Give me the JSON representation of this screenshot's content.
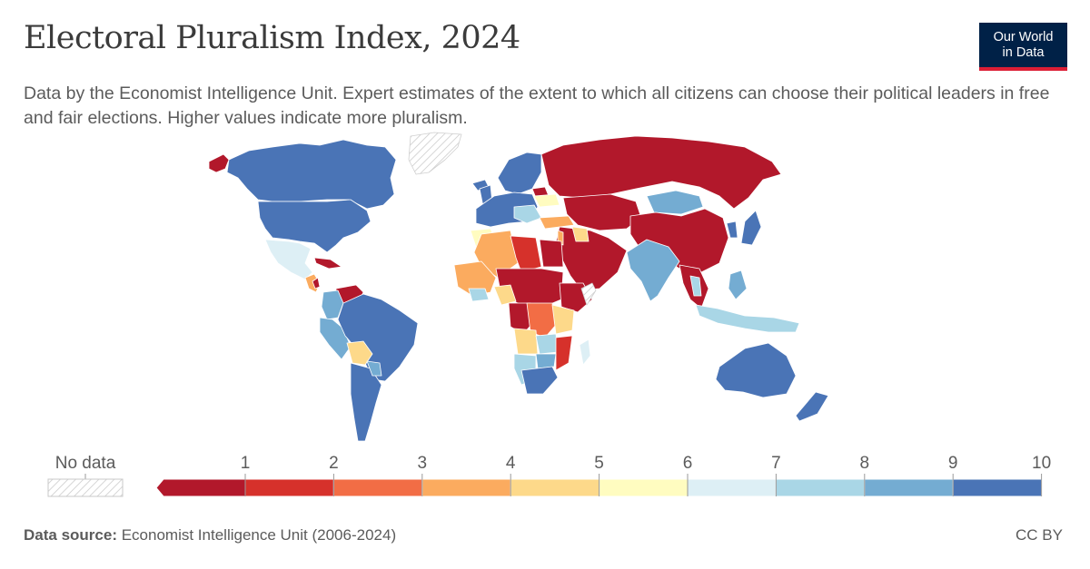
{
  "header": {
    "title": "Electoral Pluralism Index, 2024",
    "subtitle": "Data by the Economist Intelligence Unit. Expert estimates of the extent to which all citizens can choose their political leaders in free and fair elections. Higher values indicate more pluralism.",
    "logo_line1": "Our World",
    "logo_line2": "in Data"
  },
  "legend": {
    "no_data_label": "No data",
    "ticks": [
      "1",
      "2",
      "3",
      "4",
      "5",
      "6",
      "7",
      "8",
      "9",
      "10"
    ],
    "colors": [
      "#b2182b",
      "#d6312b",
      "#f26d45",
      "#fbab5f",
      "#fdd98a",
      "#fffcc0",
      "#ddeff5",
      "#a9d6e6",
      "#74acd2",
      "#4a74b6"
    ],
    "no_data_color": "#e9e9e9"
  },
  "map_colors": {
    "high": "#4a74b6",
    "mid_high": "#74acd2",
    "light": "#a9d6e6",
    "pale": "#ddeff5",
    "yellow": "#fffcc0",
    "sand": "#fdd98a",
    "orange": "#fbab5f",
    "red_orange": "#f26d45",
    "red": "#d6312b",
    "dark_red": "#b2182b",
    "no_data": "#e9e9e9"
  },
  "footer": {
    "source_label": "Data source:",
    "source_text": "Economist Intelligence Unit (2006-2024)",
    "license": "CC BY"
  }
}
